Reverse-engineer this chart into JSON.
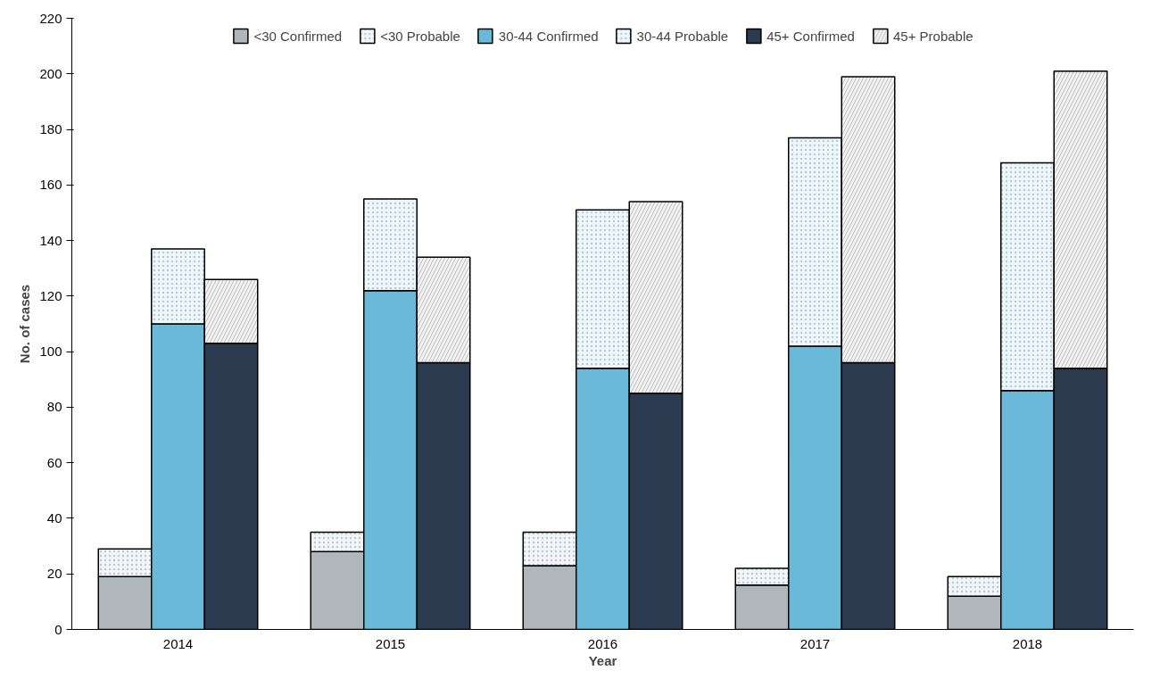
{
  "chart_data": {
    "type": "bar",
    "stacked": true,
    "xlabel": "Year",
    "ylabel": "No. of cases",
    "categories": [
      null,
      "2014",
      null,
      null,
      "2015",
      null,
      null,
      "2016",
      null,
      null,
      "2017",
      null,
      null,
      "2018",
      null
    ],
    "series": [
      {
        "name": "<30 Confirmed",
        "color": "#b0b7bb",
        "values": [
          19,
          null,
          null,
          28,
          null,
          null,
          23,
          null,
          null,
          16,
          null,
          null,
          12,
          null,
          null
        ]
      },
      {
        "name": "<30 Probable",
        "color": "#f3f5f6",
        "values": [
          10,
          null,
          null,
          7,
          null,
          null,
          12,
          null,
          null,
          6,
          null,
          null,
          7,
          null,
          null
        ]
      },
      {
        "name": "30-44 Confirmed",
        "color": "#6bb9d9",
        "values": [
          null,
          110,
          null,
          null,
          122,
          null,
          null,
          94,
          null,
          null,
          102,
          null,
          null,
          86,
          null
        ]
      },
      {
        "name": "30-44 Probable",
        "color": "#eef7fb",
        "values": [
          null,
          27,
          null,
          null,
          33,
          null,
          null,
          57,
          null,
          null,
          75,
          null,
          null,
          82,
          null
        ]
      },
      {
        "name": "45+ Confirmed",
        "color": "#2b3a4e",
        "values": [
          null,
          null,
          103,
          null,
          null,
          96,
          null,
          null,
          85,
          null,
          null,
          96,
          null,
          null,
          94
        ]
      },
      {
        "name": "45+ Probable",
        "color": "#f2f2f2",
        "values": [
          null,
          null,
          23,
          null,
          null,
          38,
          null,
          null,
          69,
          null,
          null,
          103,
          null,
          null,
          107
        ]
      }
    ],
    "ylim": [
      0,
      220
    ],
    "yticks": [
      0,
      20,
      40,
      60,
      80,
      100,
      120,
      140,
      160,
      180,
      200,
      220
    ],
    "legend": "top"
  }
}
